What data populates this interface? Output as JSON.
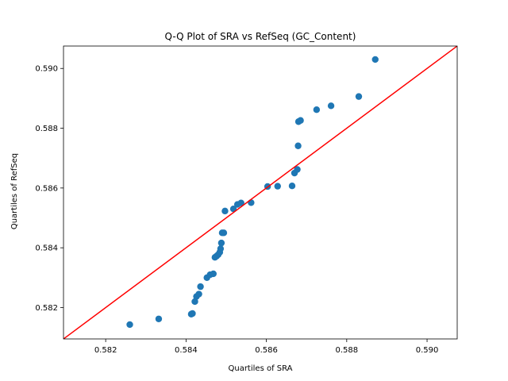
{
  "chart_data": {
    "type": "scatter",
    "title": "Q-Q Plot of SRA vs RefSeq (GC_Content)",
    "xlabel": "Quartiles of SRA",
    "ylabel": "Quartiles of RefSeq",
    "xlim": [
      0.58095,
      0.59075
    ],
    "ylim": [
      0.58095,
      0.59075
    ],
    "xticks": [
      0.582,
      0.584,
      0.586,
      0.588,
      0.59
    ],
    "yticks": [
      0.582,
      0.584,
      0.586,
      0.588,
      0.59
    ],
    "xtick_labels": [
      "0.582",
      "0.584",
      "0.586",
      "0.588",
      "0.590"
    ],
    "ytick_labels": [
      "0.582",
      "0.584",
      "0.586",
      "0.588",
      "0.590"
    ],
    "grid": false,
    "point_color": "#1f77b4",
    "reference_line": {
      "color": "#ff0000",
      "from": [
        0.58095,
        0.58095
      ],
      "to": [
        0.59075,
        0.59075
      ]
    },
    "points": [
      {
        "x": 0.5826,
        "y": 0.58143
      },
      {
        "x": 0.58332,
        "y": 0.58162
      },
      {
        "x": 0.58413,
        "y": 0.58178
      },
      {
        "x": 0.58416,
        "y": 0.5818
      },
      {
        "x": 0.58422,
        "y": 0.5822
      },
      {
        "x": 0.58426,
        "y": 0.58237
      },
      {
        "x": 0.58432,
        "y": 0.58245
      },
      {
        "x": 0.58436,
        "y": 0.5827
      },
      {
        "x": 0.58452,
        "y": 0.583
      },
      {
        "x": 0.5846,
        "y": 0.5831
      },
      {
        "x": 0.58468,
        "y": 0.58313
      },
      {
        "x": 0.58472,
        "y": 0.58368
      },
      {
        "x": 0.58476,
        "y": 0.58372
      },
      {
        "x": 0.5848,
        "y": 0.58377
      },
      {
        "x": 0.58484,
        "y": 0.58385
      },
      {
        "x": 0.58486,
        "y": 0.58397
      },
      {
        "x": 0.58488,
        "y": 0.58416
      },
      {
        "x": 0.5849,
        "y": 0.5845
      },
      {
        "x": 0.58494,
        "y": 0.5845
      },
      {
        "x": 0.58497,
        "y": 0.58523
      },
      {
        "x": 0.58518,
        "y": 0.5853
      },
      {
        "x": 0.58528,
        "y": 0.58545
      },
      {
        "x": 0.58537,
        "y": 0.5855
      },
      {
        "x": 0.58562,
        "y": 0.58551
      },
      {
        "x": 0.58603,
        "y": 0.58605
      },
      {
        "x": 0.58628,
        "y": 0.58606
      },
      {
        "x": 0.58664,
        "y": 0.58607
      },
      {
        "x": 0.5867,
        "y": 0.5865
      },
      {
        "x": 0.58677,
        "y": 0.58662
      },
      {
        "x": 0.58679,
        "y": 0.58741
      },
      {
        "x": 0.5868,
        "y": 0.58822
      },
      {
        "x": 0.58685,
        "y": 0.58826
      },
      {
        "x": 0.58725,
        "y": 0.58862
      },
      {
        "x": 0.58761,
        "y": 0.58875
      },
      {
        "x": 0.5883,
        "y": 0.58906
      },
      {
        "x": 0.58871,
        "y": 0.5903
      }
    ]
  }
}
